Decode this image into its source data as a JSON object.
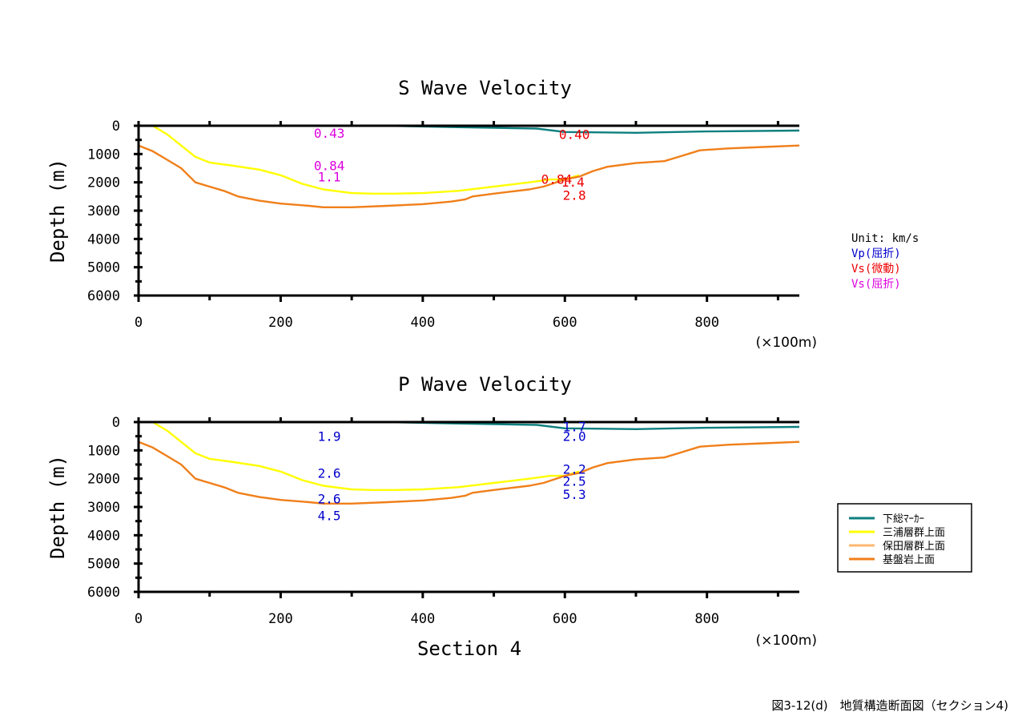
{
  "caption": "図3-12(d)　地質構造断面図（セクション4)",
  "unit_legend": {
    "title": "Unit: km/s",
    "items": [
      {
        "label": "Vp(屈折)",
        "color": "#0000cc"
      },
      {
        "label": "Vs(微動)",
        "color": "#ee0000"
      },
      {
        "label": "Vs(屈折)",
        "color": "#dd00dd"
      }
    ]
  },
  "horizon_legend": [
    {
      "label": "下総ﾏｰｶｰ",
      "color": "#0e7f7f"
    },
    {
      "label": "三浦層群上面",
      "color": "#ffff00"
    },
    {
      "label": "保田層群上面",
      "color": "#ffb870"
    },
    {
      "label": "基盤岩上面",
      "color": "#f07f1a"
    }
  ],
  "colors": {
    "shimousa": "#0e7f7f",
    "miura": "#ffff00",
    "hota": "#ffb870",
    "basement": "#f07f1a",
    "vp_label": "#0000cc",
    "vs_microtremor_label": "#ee0000",
    "vs_refraction_label": "#dd00dd"
  },
  "chart_data": [
    {
      "type": "line",
      "title": "S Wave Velocity",
      "xlabel": "",
      "ylabel": "Depth (m)",
      "x_unit_note": "(×100m)",
      "xlim": [
        0,
        930
      ],
      "ylim": [
        0,
        6000
      ],
      "x_ticks": [
        0,
        200,
        400,
        600,
        800
      ],
      "y_ticks": [
        0,
        1000,
        2000,
        3000,
        4000,
        5000,
        6000
      ],
      "series": [
        {
          "key": "shimousa",
          "x": [
            350,
            450,
            560,
            600,
            700,
            800,
            930
          ],
          "y": [
            0,
            50,
            100,
            220,
            250,
            200,
            170
          ]
        },
        {
          "key": "miura",
          "x": [
            0,
            20,
            40,
            60,
            80,
            100,
            130,
            170,
            200,
            230,
            260,
            300,
            330,
            360,
            400,
            450,
            500,
            550,
            580,
            600,
            620
          ],
          "y": [
            0,
            0,
            300,
            700,
            1100,
            1300,
            1400,
            1550,
            1750,
            2050,
            2250,
            2380,
            2400,
            2400,
            2380,
            2300,
            2150,
            2000,
            1900,
            1900,
            1750
          ]
        },
        {
          "key": "basement",
          "x": [
            0,
            20,
            40,
            60,
            80,
            100,
            120,
            140,
            170,
            200,
            240,
            260,
            300,
            350,
            400,
            440,
            460,
            470,
            500,
            550,
            570,
            600,
            620,
            640,
            660,
            700,
            740,
            760,
            790,
            830,
            880,
            930
          ],
          "y": [
            700,
            900,
            1200,
            1500,
            2000,
            2150,
            2300,
            2500,
            2650,
            2750,
            2830,
            2880,
            2880,
            2830,
            2770,
            2680,
            2600,
            2500,
            2400,
            2250,
            2150,
            1900,
            1800,
            1600,
            1450,
            1320,
            1250,
            1100,
            870,
            800,
            750,
            700
          ]
        }
      ],
      "annotations": [
        {
          "text": "0.43",
          "x": 265,
          "y": 250,
          "kind": "vs_refraction"
        },
        {
          "text": "0.84",
          "x": 265,
          "y": 1400,
          "kind": "vs_refraction"
        },
        {
          "text": "1.1",
          "x": 265,
          "y": 1800,
          "kind": "vs_refraction"
        },
        {
          "text": "0.40",
          "x": 610,
          "y": 300,
          "kind": "vs_microtremor"
        },
        {
          "text": "0.84",
          "x": 585,
          "y": 1880,
          "kind": "vs_microtremor"
        },
        {
          "text": "1.4",
          "x": 608,
          "y": 1980,
          "kind": "vs_microtremor"
        },
        {
          "text": "2.8",
          "x": 610,
          "y": 2450,
          "kind": "vs_microtremor"
        }
      ]
    },
    {
      "type": "line",
      "title": "P Wave Velocity",
      "xlabel": "Section 4",
      "ylabel": "Depth (m)",
      "x_unit_note": "(×100m)",
      "xlim": [
        0,
        930
      ],
      "ylim": [
        0,
        6000
      ],
      "x_ticks": [
        0,
        200,
        400,
        600,
        800
      ],
      "y_ticks": [
        0,
        1000,
        2000,
        3000,
        4000,
        5000,
        6000
      ],
      "series": [
        {
          "key": "shimousa",
          "x": [
            350,
            450,
            560,
            600,
            700,
            800,
            930
          ],
          "y": [
            0,
            50,
            100,
            220,
            250,
            200,
            170
          ]
        },
        {
          "key": "miura",
          "x": [
            0,
            20,
            40,
            60,
            80,
            100,
            130,
            170,
            200,
            230,
            260,
            300,
            330,
            360,
            400,
            450,
            500,
            550,
            580,
            600,
            620
          ],
          "y": [
            0,
            0,
            300,
            700,
            1100,
            1300,
            1400,
            1550,
            1750,
            2050,
            2250,
            2380,
            2400,
            2400,
            2380,
            2300,
            2150,
            2000,
            1900,
            1900,
            1750
          ]
        },
        {
          "key": "basement",
          "x": [
            0,
            20,
            40,
            60,
            80,
            100,
            120,
            140,
            170,
            200,
            240,
            260,
            300,
            350,
            400,
            440,
            460,
            470,
            500,
            550,
            570,
            600,
            620,
            640,
            660,
            700,
            740,
            760,
            790,
            830,
            880,
            930
          ],
          "y": [
            700,
            900,
            1200,
            1500,
            2000,
            2150,
            2300,
            2500,
            2650,
            2750,
            2830,
            2880,
            2880,
            2830,
            2770,
            2680,
            2600,
            2500,
            2400,
            2250,
            2150,
            1900,
            1800,
            1600,
            1450,
            1320,
            1250,
            1100,
            870,
            800,
            750,
            700
          ]
        }
      ],
      "annotations": [
        {
          "text": "1.9",
          "x": 265,
          "y": 500,
          "kind": "vp"
        },
        {
          "text": "2.6",
          "x": 265,
          "y": 1800,
          "kind": "vp"
        },
        {
          "text": "2.6",
          "x": 265,
          "y": 2700,
          "kind": "vp"
        },
        {
          "text": "4.5",
          "x": 265,
          "y": 3300,
          "kind": "vp"
        },
        {
          "text": "1.7",
          "x": 610,
          "y": 150,
          "kind": "vp"
        },
        {
          "text": "2.0",
          "x": 610,
          "y": 500,
          "kind": "vp"
        },
        {
          "text": "2.2",
          "x": 610,
          "y": 1650,
          "kind": "vp"
        },
        {
          "text": "2.5",
          "x": 610,
          "y": 2080,
          "kind": "vp"
        },
        {
          "text": "5.3",
          "x": 610,
          "y": 2550,
          "kind": "vp"
        }
      ]
    }
  ]
}
